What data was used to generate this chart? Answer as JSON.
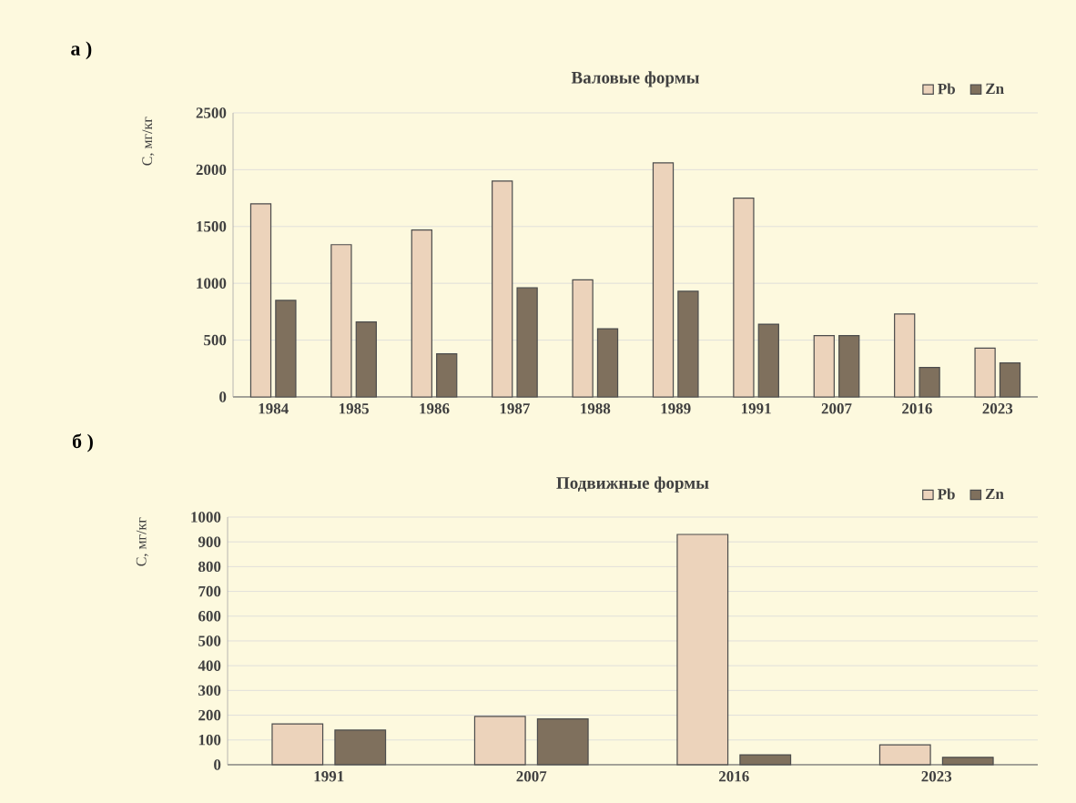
{
  "chart_data": [
    {
      "type": "bar",
      "title": "Валовые формы",
      "ylabel": "С, мг/кг",
      "annotations": [
        "а )"
      ],
      "categories": [
        "1984",
        "1985",
        "1986",
        "1987",
        "1988",
        "1989",
        "1991",
        "2007",
        "2016",
        "2023"
      ],
      "series": [
        {
          "name": "Pb",
          "color": "#ecd3bb",
          "values": [
            1700,
            1340,
            1470,
            1900,
            1030,
            2060,
            1750,
            540,
            730,
            430
          ]
        },
        {
          "name": "Zn",
          "color": "#7f705d",
          "values": [
            850,
            660,
            380,
            960,
            600,
            930,
            640,
            540,
            260,
            300
          ]
        }
      ],
      "ylim": [
        0,
        2500
      ],
      "yticks": [
        0,
        500,
        1000,
        1500,
        2000,
        2500
      ],
      "grid": "y",
      "legend": "top right"
    },
    {
      "type": "bar",
      "title": "Подвижные формы",
      "ylabel": "С, мг/кг",
      "annotations": [
        "б )"
      ],
      "categories": [
        "1991",
        "2007",
        "2016",
        "2023"
      ],
      "series": [
        {
          "name": "Pb",
          "color": "#ecd3bb",
          "values": [
            165,
            195,
            930,
            80
          ]
        },
        {
          "name": "Zn",
          "color": "#7f705d",
          "values": [
            140,
            185,
            40,
            30
          ]
        }
      ],
      "ylim": [
        0,
        1000
      ],
      "yticks": [
        0,
        100,
        200,
        300,
        400,
        500,
        600,
        700,
        800,
        900,
        1000
      ],
      "grid": "y",
      "legend": "top right"
    }
  ]
}
